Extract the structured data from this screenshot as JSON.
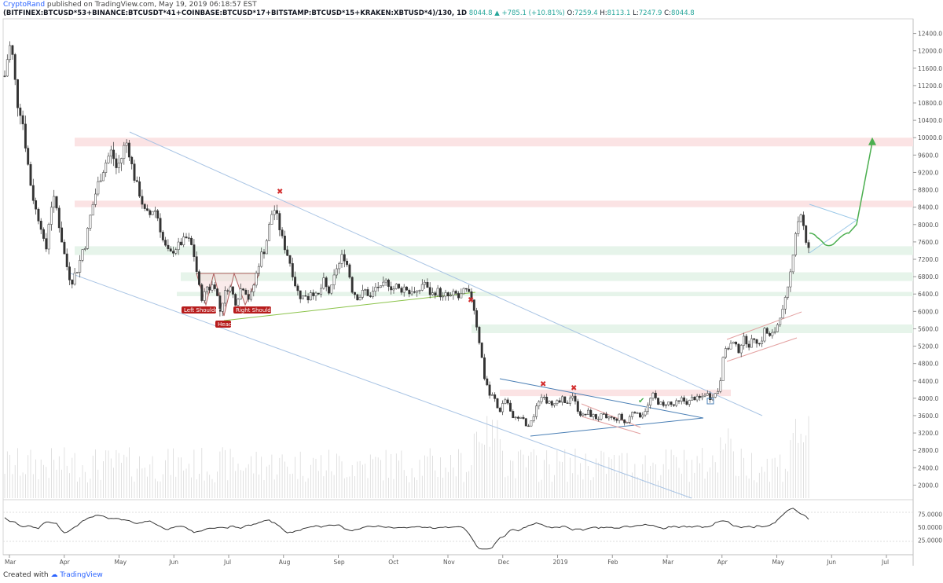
{
  "header": {
    "author": "CryptoRand",
    "published": "published on TradingView.com, May 19, 2019 06:18:57 EST",
    "symbol": "(BITFINEX:BTCUSD*53+BINANCE:BTCUSDT*41+COINBASE:BTCUSD*17+BITSTAMP:BTCUSD*15+KRAKEN:XBTUSD*4)/130, 1D",
    "last": "8044.8",
    "change": "▲ +785.1 (+10.81%)",
    "o_label": "O:",
    "o_value": "7259.4",
    "h_label": "H:",
    "h_value": "8113.1",
    "l_label": "L:",
    "l_value": "7247.9",
    "c_label": "C:",
    "c_value": "8044.8"
  },
  "footer": {
    "created": "Created with",
    "brand": "TradingView"
  },
  "colors": {
    "up": "#26a69a",
    "candle": "#333333",
    "resistance_zone": "#fbe3e4",
    "support_zone": "#e6f4ea",
    "channel_line": "#a9c4e4",
    "neckline": "#8bc34a",
    "forecast": "#4caf50",
    "annotation_bg": "#b71c1c",
    "triangle": "#4a7fb5"
  },
  "chart_data": {
    "type": "candlestick",
    "price_axis_ticks": [
      "12400.0",
      "12000.0",
      "11600.0",
      "11200.0",
      "10800.0",
      "10400.0",
      "10000.0",
      "9600.0",
      "9200.0",
      "8800.0",
      "8400.0",
      "8000.0",
      "7600.0",
      "7200.0",
      "6800.0",
      "6400.0",
      "6000.0",
      "5600.0",
      "5200.0",
      "4800.0",
      "4400.0",
      "4000.0",
      "3600.0",
      "3200.0",
      "2800.0",
      "2400.0",
      "2000.0"
    ],
    "price_range": [
      1700,
      12700
    ],
    "rsi_ticks": [
      "75.0000",
      "50.0000",
      "25.0000"
    ],
    "rsi_range": [
      0,
      100
    ],
    "time_axis": [
      "Mar",
      "Apr",
      "May",
      "Jun",
      "Jul",
      "Aug",
      "Sep",
      "Oct",
      "Nov",
      "Dec",
      "2019",
      "Feb",
      "Mar",
      "Apr",
      "May",
      "Jun",
      "Jul"
    ],
    "annotations": {
      "left_shoulder": "Left Shoulder",
      "head": "Head",
      "right_shoulder": "Right Shoulder"
    },
    "price_path": [
      [
        0,
        10300
      ],
      [
        5,
        11300
      ],
      [
        10,
        11900
      ],
      [
        14,
        12200
      ],
      [
        18,
        11500
      ],
      [
        22,
        10800
      ],
      [
        28,
        10500
      ],
      [
        34,
        9600
      ],
      [
        40,
        8800
      ],
      [
        46,
        8300
      ],
      [
        52,
        8000
      ],
      [
        58,
        7300
      ],
      [
        64,
        8400
      ],
      [
        70,
        8600
      ],
      [
        76,
        7900
      ],
      [
        82,
        7300
      ],
      [
        88,
        6800
      ],
      [
        92,
        6700
      ],
      [
        96,
        6900
      ],
      [
        100,
        7000
      ],
      [
        104,
        7400
      ],
      [
        108,
        7500
      ],
      [
        112,
        7900
      ],
      [
        116,
        8300
      ],
      [
        120,
        8600
      ],
      [
        124,
        8900
      ],
      [
        130,
        9200
      ],
      [
        136,
        9500
      ],
      [
        142,
        9700
      ],
      [
        148,
        9300
      ],
      [
        154,
        9500
      ],
      [
        158,
        9800
      ],
      [
        162,
        9900
      ],
      [
        166,
        9500
      ],
      [
        172,
        9000
      ],
      [
        178,
        8700
      ],
      [
        184,
        8300
      ],
      [
        190,
        8200
      ],
      [
        196,
        8400
      ],
      [
        202,
        8100
      ],
      [
        206,
        7700
      ],
      [
        210,
        7500
      ],
      [
        216,
        7300
      ],
      [
        220,
        7400
      ],
      [
        226,
        7500
      ],
      [
        232,
        7600
      ],
      [
        238,
        7700
      ],
      [
        244,
        7500
      ],
      [
        248,
        7200
      ],
      [
        252,
        6700
      ],
      [
        256,
        6300
      ],
      [
        260,
        6400
      ],
      [
        264,
        6600
      ],
      [
        268,
        6500
      ],
      [
        272,
        6700
      ],
      [
        276,
        6400
      ],
      [
        280,
        6000
      ],
      [
        284,
        6300
      ],
      [
        288,
        6500
      ],
      [
        292,
        6600
      ],
      [
        296,
        6400
      ],
      [
        300,
        6200
      ],
      [
        304,
        6400
      ],
      [
        308,
        6600
      ],
      [
        312,
        6500
      ],
      [
        316,
        6300
      ],
      [
        320,
        6400
      ],
      [
        324,
        6700
      ],
      [
        328,
        7000
      ],
      [
        332,
        7300
      ],
      [
        336,
        7400
      ],
      [
        340,
        7700
      ],
      [
        344,
        8100
      ],
      [
        348,
        8400
      ],
      [
        352,
        8200
      ],
      [
        356,
        7900
      ],
      [
        360,
        7600
      ],
      [
        364,
        7400
      ],
      [
        368,
        7200
      ],
      [
        372,
        6900
      ],
      [
        376,
        6600
      ],
      [
        380,
        6400
      ],
      [
        384,
        6300
      ],
      [
        388,
        6400
      ],
      [
        392,
        6300
      ],
      [
        396,
        6500
      ],
      [
        400,
        6400
      ],
      [
        404,
        6300
      ],
      [
        408,
        6500
      ],
      [
        412,
        6700
      ],
      [
        416,
        6500
      ],
      [
        420,
        6400
      ],
      [
        424,
        6700
      ],
      [
        428,
        7000
      ],
      [
        432,
        7100
      ],
      [
        436,
        7300
      ],
      [
        440,
        7200
      ],
      [
        444,
        6900
      ],
      [
        448,
        6500
      ],
      [
        452,
        6400
      ],
      [
        456,
        6300
      ],
      [
        460,
        6400
      ],
      [
        464,
        6500
      ],
      [
        468,
        6400
      ],
      [
        472,
        6300
      ],
      [
        476,
        6500
      ],
      [
        480,
        6600
      ],
      [
        484,
        6500
      ],
      [
        488,
        6600
      ],
      [
        492,
        6700
      ],
      [
        496,
        6600
      ],
      [
        500,
        6500
      ],
      [
        504,
        6600
      ],
      [
        508,
        6500
      ],
      [
        512,
        6500
      ],
      [
        516,
        6600
      ],
      [
        520,
        6400
      ],
      [
        524,
        6500
      ],
      [
        528,
        6400
      ],
      [
        532,
        6400
      ],
      [
        536,
        6600
      ],
      [
        540,
        6700
      ],
      [
        544,
        6500
      ],
      [
        548,
        6400
      ],
      [
        552,
        6400
      ],
      [
        556,
        6500
      ],
      [
        560,
        6400
      ],
      [
        564,
        6300
      ],
      [
        568,
        6400
      ],
      [
        572,
        6300
      ],
      [
        576,
        6400
      ],
      [
        580,
        6400
      ],
      [
        584,
        6300
      ],
      [
        588,
        6400
      ],
      [
        592,
        6500
      ],
      [
        596,
        6400
      ],
      [
        600,
        6300
      ],
      [
        604,
        6000
      ],
      [
        608,
        5500
      ],
      [
        612,
        5100
      ],
      [
        616,
        4500
      ],
      [
        620,
        4300
      ],
      [
        624,
        4000
      ],
      [
        628,
        4100
      ],
      [
        632,
        3800
      ],
      [
        636,
        3700
      ],
      [
        640,
        3900
      ],
      [
        644,
        4000
      ],
      [
        648,
        3800
      ],
      [
        652,
        3500
      ],
      [
        656,
        3600
      ],
      [
        660,
        3500
      ],
      [
        664,
        3600
      ],
      [
        668,
        3400
      ],
      [
        672,
        3300
      ],
      [
        676,
        3500
      ],
      [
        680,
        3600
      ],
      [
        684,
        3900
      ],
      [
        688,
        4000
      ],
      [
        692,
        4100
      ],
      [
        696,
        3900
      ],
      [
        700,
        4000
      ],
      [
        704,
        3800
      ],
      [
        708,
        3900
      ],
      [
        712,
        3900
      ],
      [
        716,
        4000
      ],
      [
        720,
        3800
      ],
      [
        724,
        4000
      ],
      [
        728,
        4100
      ],
      [
        732,
        3900
      ],
      [
        736,
        3700
      ],
      [
        740,
        3600
      ],
      [
        744,
        3600
      ],
      [
        748,
        3700
      ],
      [
        752,
        3600
      ],
      [
        756,
        3600
      ],
      [
        760,
        3500
      ],
      [
        764,
        3600
      ],
      [
        768,
        3600
      ],
      [
        772,
        3500
      ],
      [
        776,
        3600
      ],
      [
        780,
        3500
      ],
      [
        784,
        3500
      ],
      [
        788,
        3600
      ],
      [
        792,
        3500
      ],
      [
        796,
        3400
      ],
      [
        800,
        3500
      ],
      [
        804,
        3700
      ],
      [
        808,
        3700
      ],
      [
        812,
        3600
      ],
      [
        816,
        3600
      ],
      [
        820,
        3700
      ],
      [
        824,
        3800
      ],
      [
        828,
        4000
      ],
      [
        832,
        4100
      ],
      [
        836,
        3900
      ],
      [
        840,
        3900
      ],
      [
        844,
        3800
      ],
      [
        848,
        3900
      ],
      [
        852,
        3900
      ],
      [
        856,
        3800
      ],
      [
        860,
        3900
      ],
      [
        864,
        3900
      ],
      [
        868,
        4000
      ],
      [
        872,
        3900
      ],
      [
        876,
        3900
      ],
      [
        880,
        4000
      ],
      [
        884,
        4000
      ],
      [
        888,
        4000
      ],
      [
        892,
        4000
      ],
      [
        896,
        4100
      ],
      [
        900,
        4100
      ],
      [
        904,
        4000
      ],
      [
        908,
        4100
      ],
      [
        912,
        4100
      ],
      [
        916,
        4300
      ],
      [
        920,
        5000
      ],
      [
        924,
        5100
      ],
      [
        928,
        5200
      ],
      [
        932,
        5300
      ],
      [
        936,
        5200
      ],
      [
        940,
        5100
      ],
      [
        944,
        5300
      ],
      [
        948,
        5400
      ],
      [
        952,
        5200
      ],
      [
        956,
        5300
      ],
      [
        960,
        5400
      ],
      [
        964,
        5300
      ],
      [
        968,
        5200
      ],
      [
        972,
        5600
      ],
      [
        976,
        5500
      ],
      [
        980,
        5400
      ],
      [
        984,
        5500
      ],
      [
        988,
        5600
      ],
      [
        992,
        5900
      ],
      [
        996,
        6000
      ],
      [
        1000,
        6300
      ],
      [
        1004,
        6600
      ],
      [
        1008,
        7200
      ],
      [
        1012,
        7800
      ],
      [
        1016,
        8100
      ],
      [
        1020,
        8300
      ],
      [
        1024,
        7700
      ],
      [
        1028,
        7300
      ],
      [
        1032,
        8000
      ]
    ],
    "forecast_path": [
      [
        1030,
        7800
      ],
      [
        1040,
        7600
      ],
      [
        1050,
        7550
      ],
      [
        1060,
        7600
      ],
      [
        1070,
        7700
      ],
      [
        1080,
        7800
      ],
      [
        1090,
        8000
      ],
      [
        1110,
        9900
      ]
    ]
  }
}
